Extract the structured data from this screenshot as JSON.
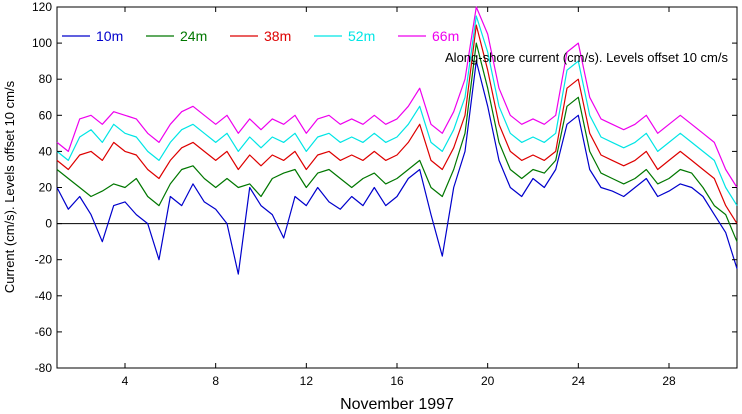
{
  "chart_data": {
    "type": "line",
    "title": "Along-shore current (cm/s). Levels offset 10 cm/s",
    "xlabel": "November 1997",
    "ylabel": "Current (cm/s). Levels offset 10 cm/s",
    "xlim": [
      1,
      31
    ],
    "ylim": [
      -80,
      120
    ],
    "x_ticks": [
      4,
      8,
      12,
      16,
      20,
      24,
      28
    ],
    "y_ticks": [
      -80,
      -60,
      -40,
      -20,
      0,
      20,
      40,
      60,
      80,
      100,
      120
    ],
    "legend_position": "top-left",
    "grid": false,
    "zero_line": 0,
    "x": [
      1.0,
      1.5,
      2.0,
      2.5,
      3.0,
      3.5,
      4.0,
      4.5,
      5.0,
      5.5,
      6.0,
      6.5,
      7.0,
      7.5,
      8.0,
      8.5,
      9.0,
      9.5,
      10.0,
      10.5,
      11.0,
      11.5,
      12.0,
      12.5,
      13.0,
      13.5,
      14.0,
      14.5,
      15.0,
      15.5,
      16.0,
      16.5,
      17.0,
      17.5,
      18.0,
      18.5,
      19.0,
      19.5,
      20.0,
      20.5,
      21.0,
      21.5,
      22.0,
      22.5,
      23.0,
      23.5,
      24.0,
      24.5,
      25.0,
      25.5,
      26.0,
      26.5,
      27.0,
      27.5,
      28.0,
      28.5,
      29.0,
      29.5,
      30.0,
      30.5,
      31.0
    ],
    "series": [
      {
        "name": "10m",
        "color": "#0000cc",
        "values": [
          20,
          8,
          15,
          5,
          -10,
          10,
          12,
          5,
          0,
          -20,
          15,
          10,
          22,
          12,
          8,
          0,
          -28,
          20,
          10,
          5,
          -8,
          15,
          10,
          20,
          12,
          8,
          15,
          10,
          20,
          10,
          15,
          25,
          30,
          5,
          -18,
          20,
          40,
          90,
          65,
          35,
          20,
          15,
          25,
          20,
          30,
          55,
          60,
          30,
          20,
          18,
          15,
          20,
          25,
          15,
          18,
          22,
          20,
          15,
          5,
          -5,
          -25
        ]
      },
      {
        "name": "24m",
        "color": "#007700",
        "values": [
          30,
          25,
          20,
          15,
          18,
          22,
          20,
          25,
          15,
          10,
          22,
          30,
          32,
          25,
          20,
          25,
          20,
          22,
          15,
          25,
          28,
          30,
          20,
          28,
          30,
          25,
          20,
          25,
          28,
          22,
          25,
          30,
          35,
          20,
          15,
          30,
          50,
          100,
          75,
          45,
          30,
          25,
          30,
          28,
          35,
          65,
          70,
          40,
          28,
          25,
          22,
          25,
          30,
          22,
          25,
          30,
          28,
          20,
          10,
          5,
          -10
        ]
      },
      {
        "name": "38m",
        "color": "#dd0000",
        "values": [
          35,
          30,
          38,
          40,
          35,
          45,
          40,
          38,
          30,
          25,
          35,
          42,
          45,
          40,
          35,
          40,
          30,
          38,
          32,
          38,
          35,
          40,
          30,
          38,
          40,
          35,
          38,
          35,
          40,
          35,
          38,
          45,
          55,
          35,
          30,
          42,
          60,
          110,
          85,
          55,
          40,
          35,
          38,
          35,
          40,
          75,
          80,
          50,
          38,
          35,
          32,
          35,
          40,
          30,
          35,
          40,
          35,
          30,
          25,
          10,
          0
        ]
      },
      {
        "name": "52m",
        "color": "#00e5e5",
        "values": [
          40,
          35,
          48,
          52,
          45,
          55,
          50,
          48,
          40,
          35,
          45,
          52,
          55,
          50,
          45,
          50,
          40,
          48,
          42,
          48,
          45,
          50,
          40,
          48,
          50,
          45,
          48,
          45,
          50,
          45,
          48,
          55,
          65,
          45,
          40,
          52,
          70,
          115,
          95,
          65,
          50,
          45,
          48,
          45,
          50,
          85,
          90,
          60,
          48,
          45,
          42,
          45,
          50,
          40,
          45,
          50,
          45,
          40,
          35,
          20,
          10
        ]
      },
      {
        "name": "66m",
        "color": "#ee00ee",
        "values": [
          45,
          40,
          58,
          60,
          55,
          62,
          60,
          58,
          50,
          45,
          55,
          62,
          65,
          60,
          55,
          60,
          50,
          58,
          52,
          58,
          55,
          60,
          50,
          58,
          60,
          55,
          58,
          55,
          60,
          55,
          58,
          65,
          75,
          55,
          50,
          62,
          80,
          120,
          105,
          75,
          60,
          55,
          58,
          55,
          60,
          95,
          100,
          70,
          58,
          55,
          52,
          55,
          60,
          50,
          55,
          60,
          55,
          50,
          45,
          30,
          20
        ]
      }
    ]
  }
}
